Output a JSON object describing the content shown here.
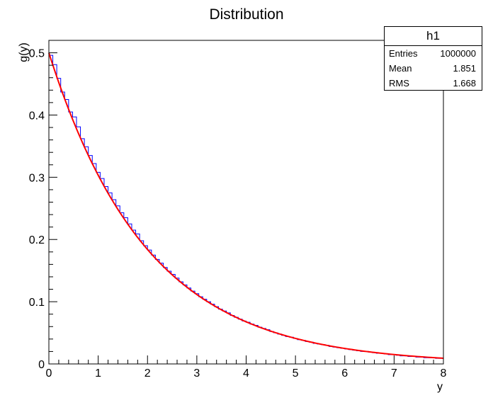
{
  "chart_data": {
    "type": "bar",
    "title": "Distribution",
    "xlabel": "y",
    "ylabel": "g(y)",
    "xlim": [
      0,
      8
    ],
    "ylim": [
      0,
      0.52
    ],
    "x_ticks": [
      "0",
      "1",
      "2",
      "3",
      "4",
      "5",
      "6",
      "7",
      "8"
    ],
    "y_ticks": [
      "0",
      "0.1",
      "0.2",
      "0.3",
      "0.4",
      "0.5"
    ],
    "grid": false,
    "series": [
      {
        "kind": "histogram",
        "bin_width": 0.08,
        "x_start": 0,
        "values": [
          0.496,
          0.481,
          0.459,
          0.437,
          0.425,
          0.405,
          0.397,
          0.381,
          0.362,
          0.349,
          0.335,
          0.322,
          0.308,
          0.298,
          0.285,
          0.275,
          0.264,
          0.254,
          0.243,
          0.235,
          0.225,
          0.215,
          0.209,
          0.198,
          0.19,
          0.183,
          0.175,
          0.168,
          0.162,
          0.155,
          0.149,
          0.144,
          0.138,
          0.132,
          0.127,
          0.122,
          0.117,
          0.113,
          0.108,
          0.104,
          0.1,
          0.096,
          0.092,
          0.088,
          0.085,
          0.082,
          0.078,
          0.075,
          0.072,
          0.069,
          0.067,
          0.064,
          0.062,
          0.059,
          0.057,
          0.055,
          0.052,
          0.05,
          0.048,
          0.046,
          0.044,
          0.043,
          0.041,
          0.039,
          0.038,
          0.036,
          0.035,
          0.033,
          0.032,
          0.031,
          0.03,
          0.028,
          0.027,
          0.026,
          0.025,
          0.024,
          0.023,
          0.022,
          0.021,
          0.02,
          0.02,
          0.019,
          0.018,
          0.017,
          0.017,
          0.016,
          0.015,
          0.015,
          0.014,
          0.013,
          0.013,
          0.012,
          0.012,
          0.011,
          0.011,
          0.01,
          0.01,
          0.01,
          0.009,
          0.009
        ],
        "color": "#0000ff"
      },
      {
        "kind": "curve",
        "function": "0.5*exp(-0.5*y)",
        "color": "#ff0000"
      }
    ]
  },
  "stats": {
    "title": "h1",
    "rows": [
      {
        "key": "Entries",
        "value": "1000000"
      },
      {
        "key": "Mean",
        "value": "1.851"
      },
      {
        "key": "RMS",
        "value": "1.668"
      }
    ]
  }
}
